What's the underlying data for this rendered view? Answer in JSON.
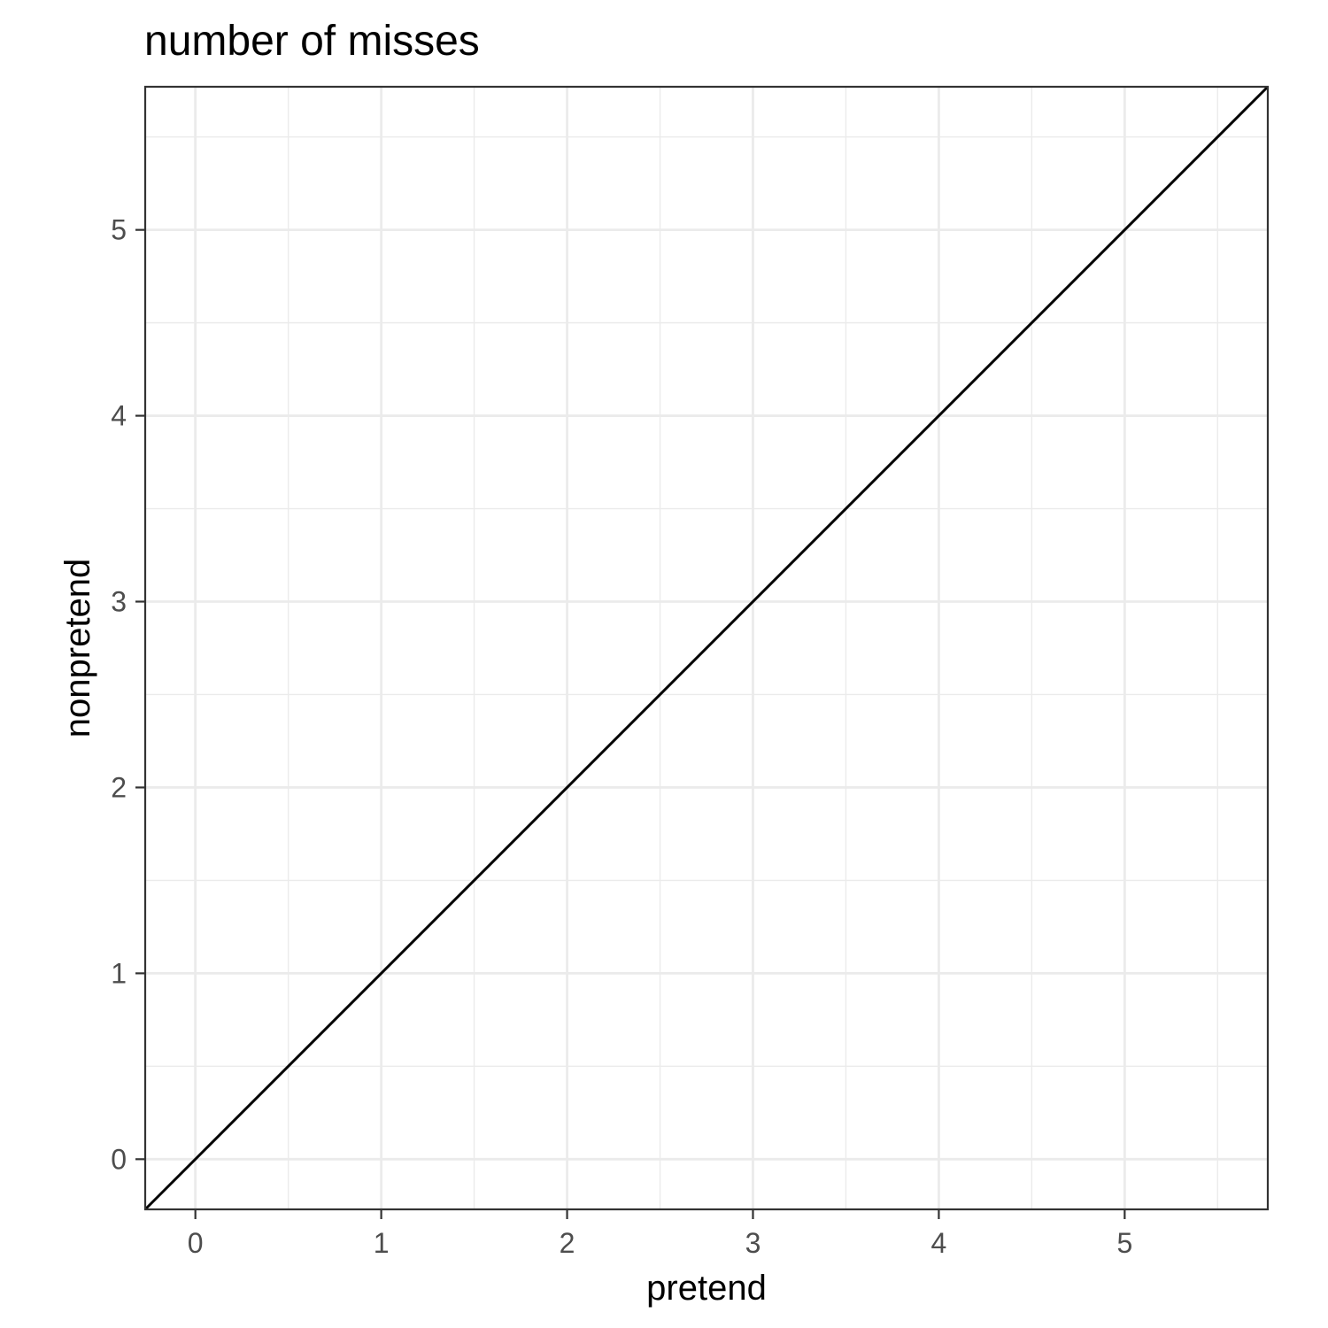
{
  "chart_data": {
    "type": "line",
    "title": "number of misses",
    "xlabel": "pretend",
    "ylabel": "nonpretend",
    "xlim": [
      -0.27,
      5.77
    ],
    "ylim": [
      -0.27,
      5.77
    ],
    "x_ticks": [
      0,
      1,
      2,
      3,
      4,
      5
    ],
    "y_ticks": [
      0,
      1,
      2,
      3,
      4,
      5
    ],
    "x_minor": [
      0.5,
      1.5,
      2.5,
      3.5,
      4.5,
      5.5
    ],
    "y_minor": [
      0.5,
      1.5,
      2.5,
      3.5,
      4.5,
      5.5
    ],
    "grid": true,
    "series": [
      {
        "x": [
          -0.27,
          5.77
        ],
        "y": [
          -0.27,
          5.77
        ],
        "color": "#000000"
      }
    ]
  }
}
